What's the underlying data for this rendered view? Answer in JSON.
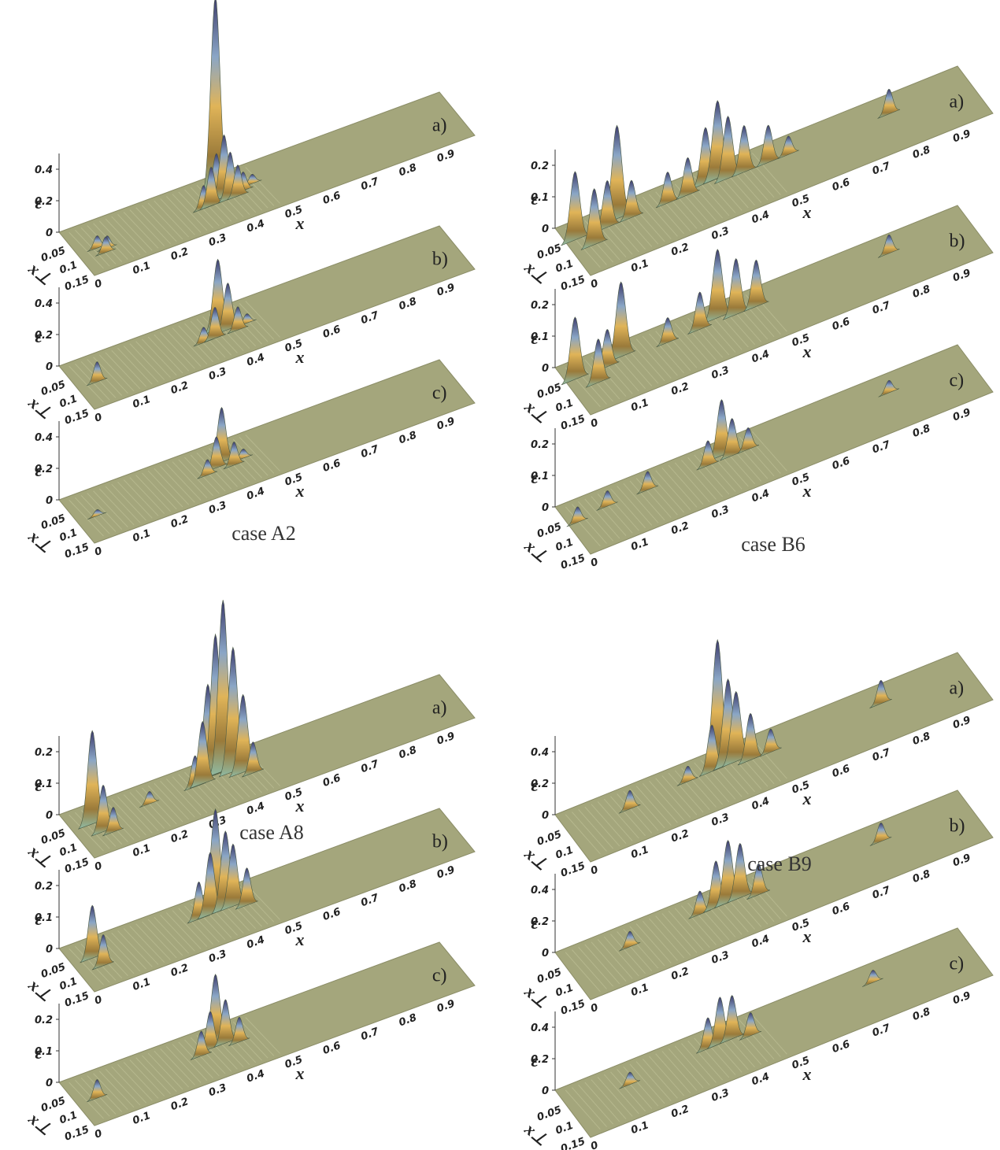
{
  "x_ticks": [
    0,
    0.1,
    0.2,
    0.3,
    0.4,
    0.5,
    0.6,
    0.7,
    0.8,
    0.9
  ],
  "xperp_ticks": [
    0.05,
    0.1,
    0.15
  ],
  "x_label": "x",
  "eps_label": "ε",
  "xperp_label": "x⊥",
  "panels": [
    {
      "caption": "case A2",
      "eps_ticks": [
        0,
        0.2,
        0.4
      ],
      "eps_lim": [
        0,
        0.5
      ],
      "plots": [
        {
          "label": "a)",
          "peaks": [
            [
              0.05,
              0.08,
              0.08
            ],
            [
              0.06,
              0.1,
              0.1
            ],
            [
              0.07,
              0.09,
              0.08
            ],
            [
              0.33,
              0.08,
              0.15
            ],
            [
              0.35,
              0.08,
              0.25
            ],
            [
              0.37,
              0.07,
              0.3
            ],
            [
              0.38,
              0.05,
              1.25
            ],
            [
              0.39,
              0.07,
              0.4
            ],
            [
              0.4,
              0.08,
              0.3
            ],
            [
              0.42,
              0.08,
              0.2
            ],
            [
              0.44,
              0.07,
              0.12
            ],
            [
              0.47,
              0.06,
              0.06
            ]
          ]
        },
        {
          "label": "b)",
          "peaks": [
            [
              0.05,
              0.08,
              0.13
            ],
            [
              0.33,
              0.08,
              0.1
            ],
            [
              0.36,
              0.08,
              0.2
            ],
            [
              0.38,
              0.06,
              0.45
            ],
            [
              0.4,
              0.07,
              0.3
            ],
            [
              0.42,
              0.08,
              0.15
            ],
            [
              0.45,
              0.07,
              0.06
            ]
          ]
        },
        {
          "label": "c)",
          "peaks": [
            [
              0.05,
              0.08,
              0.04
            ],
            [
              0.34,
              0.08,
              0.1
            ],
            [
              0.37,
              0.07,
              0.2
            ],
            [
              0.39,
              0.06,
              0.35
            ],
            [
              0.41,
              0.08,
              0.15
            ],
            [
              0.44,
              0.07,
              0.06
            ]
          ]
        }
      ]
    },
    {
      "caption": "case B6",
      "eps_ticks": [
        0,
        0.1,
        0.2
      ],
      "eps_lim": [
        0,
        0.25
      ],
      "plots": [
        {
          "label": "a)",
          "peaks": [
            [
              0.02,
              0.05,
              0.22
            ],
            [
              0.05,
              0.08,
              0.18
            ],
            [
              0.1,
              0.05,
              0.15
            ],
            [
              0.13,
              0.04,
              0.3
            ],
            [
              0.16,
              0.05,
              0.12
            ],
            [
              0.25,
              0.05,
              0.1
            ],
            [
              0.3,
              0.05,
              0.12
            ],
            [
              0.35,
              0.04,
              0.18
            ],
            [
              0.38,
              0.04,
              0.25
            ],
            [
              0.4,
              0.05,
              0.2
            ],
            [
              0.44,
              0.05,
              0.15
            ],
            [
              0.5,
              0.05,
              0.12
            ],
            [
              0.55,
              0.05,
              0.06
            ],
            [
              0.8,
              0.05,
              0.08
            ]
          ]
        },
        {
          "label": "b)",
          "peaks": [
            [
              0.02,
              0.05,
              0.2
            ],
            [
              0.06,
              0.08,
              0.14
            ],
            [
              0.1,
              0.05,
              0.12
            ],
            [
              0.14,
              0.04,
              0.24
            ],
            [
              0.25,
              0.05,
              0.08
            ],
            [
              0.33,
              0.05,
              0.12
            ],
            [
              0.38,
              0.04,
              0.22
            ],
            [
              0.42,
              0.05,
              0.18
            ],
            [
              0.47,
              0.05,
              0.15
            ],
            [
              0.8,
              0.05,
              0.06
            ]
          ]
        },
        {
          "label": "c)",
          "peaks": [
            [
              0.02,
              0.06,
              0.05
            ],
            [
              0.1,
              0.05,
              0.05
            ],
            [
              0.2,
              0.05,
              0.06
            ],
            [
              0.35,
              0.05,
              0.08
            ],
            [
              0.39,
              0.04,
              0.18
            ],
            [
              0.41,
              0.05,
              0.12
            ],
            [
              0.45,
              0.05,
              0.07
            ],
            [
              0.8,
              0.05,
              0.04
            ]
          ]
        }
      ]
    },
    {
      "caption": "case A8",
      "eps_ticks": [
        0,
        0.1,
        0.2
      ],
      "eps_lim": [
        0,
        0.25
      ],
      "plots": [
        {
          "label": "a)",
          "peaks": [
            [
              0.05,
              0.06,
              0.3
            ],
            [
              0.06,
              0.09,
              0.15
            ],
            [
              0.08,
              0.1,
              0.08
            ],
            [
              0.2,
              0.06,
              0.04
            ],
            [
              0.32,
              0.06,
              0.1
            ],
            [
              0.34,
              0.06,
              0.2
            ],
            [
              0.36,
              0.05,
              0.3
            ],
            [
              0.38,
              0.05,
              0.45
            ],
            [
              0.4,
              0.05,
              0.55
            ],
            [
              0.42,
              0.06,
              0.4
            ],
            [
              0.44,
              0.07,
              0.25
            ],
            [
              0.46,
              0.08,
              0.1
            ]
          ]
        },
        {
          "label": "b)",
          "peaks": [
            [
              0.05,
              0.06,
              0.17
            ],
            [
              0.06,
              0.09,
              0.1
            ],
            [
              0.33,
              0.06,
              0.12
            ],
            [
              0.36,
              0.06,
              0.2
            ],
            [
              0.38,
              0.05,
              0.32
            ],
            [
              0.4,
              0.06,
              0.25
            ],
            [
              0.42,
              0.06,
              0.2
            ],
            [
              0.45,
              0.07,
              0.12
            ]
          ]
        },
        {
          "label": "c)",
          "peaks": [
            [
              0.05,
              0.08,
              0.06
            ],
            [
              0.33,
              0.07,
              0.08
            ],
            [
              0.36,
              0.06,
              0.12
            ],
            [
              0.38,
              0.05,
              0.22
            ],
            [
              0.4,
              0.06,
              0.14
            ],
            [
              0.43,
              0.07,
              0.08
            ]
          ]
        }
      ]
    },
    {
      "caption": "case B9",
      "eps_ticks": [
        0,
        0.2,
        0.4
      ],
      "eps_lim": [
        0,
        0.5
      ],
      "plots": [
        {
          "label": "a)",
          "peaks": [
            [
              0.15,
              0.06,
              0.12
            ],
            [
              0.3,
              0.05,
              0.1
            ],
            [
              0.36,
              0.05,
              0.3
            ],
            [
              0.38,
              0.04,
              0.8
            ],
            [
              0.4,
              0.05,
              0.55
            ],
            [
              0.42,
              0.05,
              0.45
            ],
            [
              0.45,
              0.06,
              0.3
            ],
            [
              0.5,
              0.06,
              0.15
            ],
            [
              0.78,
              0.05,
              0.15
            ]
          ]
        },
        {
          "label": "b)",
          "peaks": [
            [
              0.15,
              0.06,
              0.1
            ],
            [
              0.33,
              0.05,
              0.15
            ],
            [
              0.37,
              0.05,
              0.3
            ],
            [
              0.4,
              0.05,
              0.4
            ],
            [
              0.43,
              0.05,
              0.35
            ],
            [
              0.47,
              0.06,
              0.2
            ],
            [
              0.78,
              0.05,
              0.12
            ]
          ]
        },
        {
          "label": "c)",
          "peaks": [
            [
              0.15,
              0.06,
              0.08
            ],
            [
              0.35,
              0.05,
              0.2
            ],
            [
              0.38,
              0.05,
              0.3
            ],
            [
              0.41,
              0.05,
              0.28
            ],
            [
              0.45,
              0.06,
              0.15
            ],
            [
              0.76,
              0.05,
              0.08
            ]
          ]
        }
      ]
    }
  ]
}
